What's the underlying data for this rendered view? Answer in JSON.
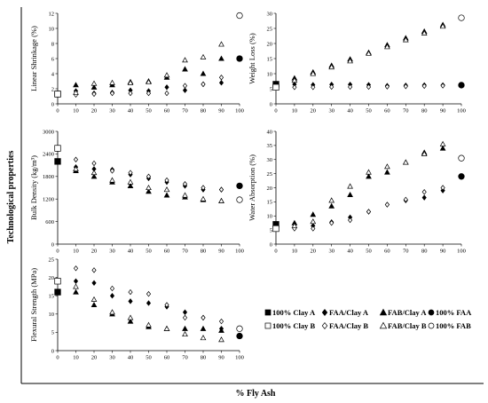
{
  "figure": {
    "ylabel": "Technological properties",
    "xlabel": "% Fly Ash"
  },
  "legend": [
    {
      "label": "100% Clay A",
      "marker": "square",
      "filled": true
    },
    {
      "label": "FAA/Clay A",
      "marker": "diamond",
      "filled": true
    },
    {
      "label": "FAB/Clay A",
      "marker": "triangle",
      "filled": true
    },
    {
      "label": "100% FAA",
      "marker": "circle",
      "filled": true
    },
    {
      "label": "100% Clay B",
      "marker": "square",
      "filled": false
    },
    {
      "label": "FAA/Clay B",
      "marker": "diamond",
      "filled": false
    },
    {
      "label": "FAB/Clay B",
      "marker": "triangle",
      "filled": false
    },
    {
      "label": "100% FAB",
      "marker": "circle",
      "filled": false
    }
  ],
  "colors": {
    "marker": "#000000",
    "background": "#ffffff"
  },
  "chart_data": [
    {
      "type": "scatter",
      "ylabel": "Linear Shrinkage (%)",
      "xlim": [
        0,
        100
      ],
      "ylim": [
        0,
        12
      ],
      "xticks": [
        0,
        10,
        20,
        30,
        40,
        50,
        60,
        70,
        80,
        90,
        100
      ],
      "yticks": [
        0,
        2,
        4,
        6,
        8,
        10,
        12
      ],
      "series": [
        {
          "name": "100% Clay A",
          "x": [
            0
          ],
          "y": [
            1.3
          ]
        },
        {
          "name": "FAA/Clay A",
          "x": [
            10,
            20,
            30,
            40,
            50,
            60,
            70,
            80,
            90
          ],
          "y": [
            1.7,
            1.4,
            1.5,
            1.8,
            1.7,
            2.2,
            1.8,
            2.6,
            2.8
          ]
        },
        {
          "name": "FAB/Clay A",
          "x": [
            10,
            20,
            30,
            40,
            50,
            60,
            70,
            80,
            90
          ],
          "y": [
            2.5,
            2.2,
            2.5,
            2.9,
            3.0,
            3.5,
            4.6,
            4.0,
            6.0
          ]
        },
        {
          "name": "100% FAA",
          "x": [
            100
          ],
          "y": [
            6.0
          ]
        },
        {
          "name": "100% Clay B",
          "x": [
            0
          ],
          "y": [
            1.3
          ]
        },
        {
          "name": "FAA/Clay B",
          "x": [
            10,
            20,
            30,
            40,
            50,
            60,
            70,
            80,
            90
          ],
          "y": [
            1.2,
            1.3,
            1.4,
            1.4,
            1.4,
            1.4,
            2.4,
            2.6,
            3.5
          ]
        },
        {
          "name": "FAB/Clay B",
          "x": [
            10,
            20,
            30,
            40,
            50,
            60,
            70,
            80,
            90
          ],
          "y": [
            1.5,
            2.7,
            2.8,
            2.8,
            2.9,
            3.8,
            5.8,
            6.2,
            7.9
          ]
        },
        {
          "name": "100% FAB",
          "x": [
            100
          ],
          "y": [
            11.7
          ]
        }
      ]
    },
    {
      "type": "scatter",
      "ylabel": "Weight Loss (%)",
      "xlim": [
        0,
        100
      ],
      "ylim": [
        0,
        30
      ],
      "xticks": [
        0,
        10,
        20,
        30,
        40,
        50,
        60,
        70,
        80,
        90,
        100
      ],
      "yticks": [
        0,
        5,
        10,
        15,
        20,
        25,
        30
      ],
      "series": [
        {
          "name": "100% Clay A",
          "x": [
            0
          ],
          "y": [
            6.5
          ]
        },
        {
          "name": "FAA/Clay A",
          "x": [
            10,
            20,
            30,
            40,
            50,
            60,
            70,
            80,
            90
          ],
          "y": [
            6.5,
            6.3,
            6.4,
            6.4,
            6.3,
            6.0,
            6.1,
            6.2,
            6.2
          ]
        },
        {
          "name": "FAB/Clay A",
          "x": [
            10,
            20,
            30,
            40,
            50,
            60,
            70,
            80,
            90
          ],
          "y": [
            8.5,
            10.5,
            12.7,
            14.8,
            17.0,
            19.5,
            21.8,
            24.0,
            26.2
          ]
        },
        {
          "name": "100% FAA",
          "x": [
            100
          ],
          "y": [
            6.2
          ]
        },
        {
          "name": "100% Clay B",
          "x": [
            0
          ],
          "y": [
            5.5
          ]
        },
        {
          "name": "FAA/Clay B",
          "x": [
            10,
            20,
            30,
            40,
            50,
            60,
            70,
            80,
            90
          ],
          "y": [
            5.5,
            5.5,
            5.6,
            5.6,
            5.6,
            5.7,
            5.8,
            5.9,
            6.0
          ]
        },
        {
          "name": "FAB/Clay B",
          "x": [
            10,
            20,
            30,
            40,
            50,
            60,
            70,
            80,
            90
          ],
          "y": [
            7.8,
            10.0,
            12.2,
            14.2,
            16.7,
            18.9,
            21.2,
            23.4,
            25.7
          ]
        },
        {
          "name": "100% FAB",
          "x": [
            100
          ],
          "y": [
            28.5
          ]
        }
      ]
    },
    {
      "type": "scatter",
      "ylabel": "Bulk Density (kg/m³)",
      "xlim": [
        0,
        100
      ],
      "ylim": [
        0,
        3000
      ],
      "xticks": [
        0,
        10,
        20,
        30,
        40,
        50,
        60,
        70,
        80,
        90,
        100
      ],
      "yticks": [
        0,
        600,
        1200,
        1800,
        2400,
        3000
      ],
      "series": [
        {
          "name": "100% Clay A",
          "x": [
            0
          ],
          "y": [
            2200
          ]
        },
        {
          "name": "FAA/Clay A",
          "x": [
            10,
            20,
            30,
            40,
            50,
            60,
            70,
            80,
            90
          ],
          "y": [
            2050,
            2000,
            1980,
            1850,
            1750,
            1650,
            1550,
            1450,
            1450
          ]
        },
        {
          "name": "FAB/Clay A",
          "x": [
            10,
            20,
            30,
            40,
            50,
            60,
            70,
            80,
            90
          ],
          "y": [
            1950,
            1800,
            1650,
            1550,
            1400,
            1300,
            1250,
            1180,
            1150
          ]
        },
        {
          "name": "100% FAA",
          "x": [
            100
          ],
          "y": [
            1550
          ]
        },
        {
          "name": "100% Clay B",
          "x": [
            0
          ],
          "y": [
            2550
          ]
        },
        {
          "name": "FAA/Clay B",
          "x": [
            10,
            20,
            30,
            40,
            50,
            60,
            70,
            80,
            90
          ],
          "y": [
            2250,
            2150,
            1950,
            1900,
            1800,
            1700,
            1600,
            1500,
            1450
          ]
        },
        {
          "name": "FAB/Clay B",
          "x": [
            10,
            20,
            30,
            40,
            50,
            60,
            70,
            80,
            90
          ],
          "y": [
            2000,
            1900,
            1700,
            1650,
            1500,
            1450,
            1300,
            1200,
            1150
          ]
        },
        {
          "name": "100% FAB",
          "x": [
            100
          ],
          "y": [
            1180
          ]
        }
      ]
    },
    {
      "type": "scatter",
      "ylabel": "Water Absorption (%)",
      "xlim": [
        0,
        100
      ],
      "ylim": [
        0,
        40
      ],
      "xticks": [
        0,
        10,
        20,
        30,
        40,
        50,
        60,
        70,
        80,
        90,
        100
      ],
      "yticks": [
        0,
        5,
        10,
        15,
        20,
        25,
        30,
        35,
        40
      ],
      "series": [
        {
          "name": "100% Clay A",
          "x": [
            0
          ],
          "y": [
            7.0
          ]
        },
        {
          "name": "FAA/Clay A",
          "x": [
            10,
            20,
            30,
            40,
            50,
            60,
            70,
            80,
            90
          ],
          "y": [
            6.0,
            6.5,
            7.8,
            9.5,
            11.5,
            14.0,
            15.5,
            16.5,
            19.0
          ]
        },
        {
          "name": "FAB/Clay A",
          "x": [
            10,
            20,
            30,
            40,
            50,
            60,
            70,
            80,
            90
          ],
          "y": [
            7.5,
            10.5,
            13.5,
            17.5,
            24.0,
            25.5,
            29.0,
            32.5,
            34.0
          ]
        },
        {
          "name": "100% FAA",
          "x": [
            100
          ],
          "y": [
            24.0
          ]
        },
        {
          "name": "100% Clay B",
          "x": [
            0
          ],
          "y": [
            5.5
          ]
        },
        {
          "name": "FAA/Clay B",
          "x": [
            10,
            20,
            30,
            40,
            50,
            60,
            70,
            80,
            90
          ],
          "y": [
            5.5,
            5.5,
            7.5,
            8.5,
            11.5,
            14.0,
            15.8,
            18.5,
            20.0
          ]
        },
        {
          "name": "FAB/Clay B",
          "x": [
            10,
            20,
            30,
            40,
            50,
            60,
            70,
            80,
            90
          ],
          "y": [
            6.5,
            8.0,
            15.5,
            20.5,
            25.5,
            27.5,
            29.0,
            32.0,
            35.5
          ]
        },
        {
          "name": "100% FAB",
          "x": [
            100
          ],
          "y": [
            30.5
          ]
        }
      ]
    },
    {
      "type": "scatter",
      "ylabel": "Flexural Strength (MPa)",
      "xlim": [
        0,
        100
      ],
      "ylim": [
        0,
        25
      ],
      "xticks": [
        0,
        10,
        20,
        30,
        40,
        50,
        60,
        70,
        80,
        90,
        100
      ],
      "yticks": [
        0,
        5,
        10,
        15,
        20,
        25
      ],
      "series": [
        {
          "name": "100% Clay A",
          "x": [
            0
          ],
          "y": [
            16.0
          ]
        },
        {
          "name": "FAA/Clay A",
          "x": [
            10,
            20,
            30,
            40,
            50,
            60,
            70,
            80,
            90
          ],
          "y": [
            19.0,
            18.5,
            15.0,
            13.5,
            13.0,
            12.0,
            10.5,
            9.0,
            6.0
          ]
        },
        {
          "name": "FAB/Clay A",
          "x": [
            10,
            20,
            30,
            40,
            50,
            60,
            70,
            80,
            90
          ],
          "y": [
            16.0,
            12.5,
            10.0,
            8.0,
            6.5,
            6.0,
            6.0,
            6.0,
            5.5
          ]
        },
        {
          "name": "100% FAA",
          "x": [
            100
          ],
          "y": [
            4.0
          ]
        },
        {
          "name": "100% Clay B",
          "x": [
            0
          ],
          "y": [
            19.0
          ]
        },
        {
          "name": "FAA/Clay B",
          "x": [
            10,
            20,
            30,
            40,
            50,
            60,
            70,
            80,
            90
          ],
          "y": [
            22.5,
            22.0,
            17.0,
            16.0,
            15.5,
            12.5,
            9.0,
            9.0,
            8.0
          ]
        },
        {
          "name": "FAB/Clay B",
          "x": [
            10,
            20,
            30,
            40,
            50,
            60,
            70,
            80,
            90
          ],
          "y": [
            17.5,
            14.0,
            10.5,
            9.0,
            7.0,
            6.0,
            4.5,
            3.5,
            3.0
          ]
        },
        {
          "name": "100% FAB",
          "x": [
            100
          ],
          "y": [
            6.0
          ]
        }
      ]
    }
  ]
}
